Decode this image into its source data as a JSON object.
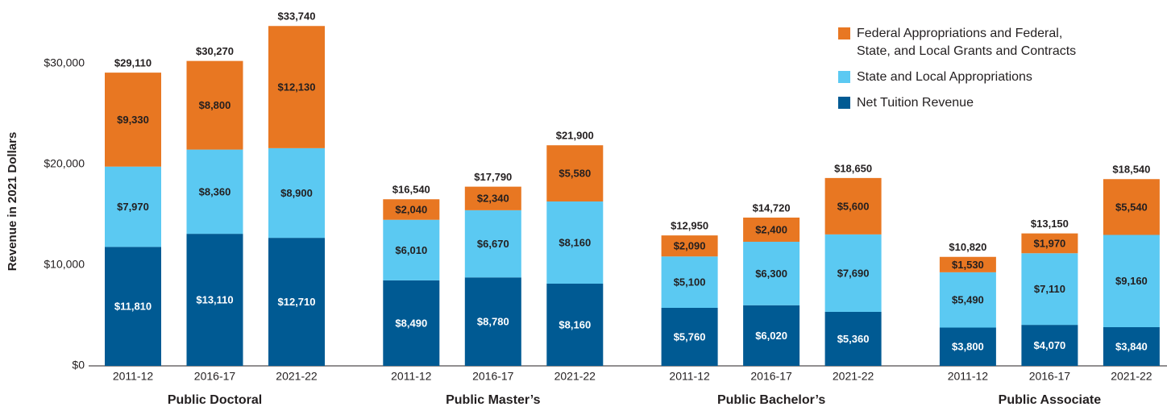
{
  "chart_data": {
    "type": "stacked-bar",
    "y_axis_label": "Revenue in 2021 Dollars",
    "categories": [
      "2011-12",
      "2016-17",
      "2021-22",
      "2011-12",
      "2016-17",
      "2021-22",
      "2011-12",
      "2016-17",
      "2021-22",
      "2011-12",
      "2016-17",
      "2021-22"
    ],
    "group_labels": [
      "Public Doctoral",
      "Public Master’s",
      "Public Bachelor’s",
      "Public Associate"
    ],
    "series": [
      {
        "name": "Net Tuition Revenue",
        "color": "#005a93",
        "values": [
          11810,
          13110,
          12710,
          8490,
          8780,
          8160,
          5760,
          6020,
          5360,
          3800,
          4070,
          3840
        ],
        "value_labels": [
          "$11,810",
          "$13,110",
          "$12,710",
          "$8,490",
          "$8,780",
          "$8,160",
          "$5,760",
          "$6,020",
          "$5,360",
          "$3,800",
          "$4,070",
          "$3,840"
        ]
      },
      {
        "name": "State and Local Appropriations",
        "color": "#5bc9f2",
        "values": [
          7970,
          8360,
          8900,
          6010,
          6670,
          8160,
          5100,
          6300,
          7690,
          5490,
          7110,
          9160
        ],
        "value_labels": [
          "$7,970",
          "$8,360",
          "$8,900",
          "$6,010",
          "$6,670",
          "$8,160",
          "$5,100",
          "$6,300",
          "$7,690",
          "$5,490",
          "$7,110",
          "$9,160"
        ]
      },
      {
        "name": "Federal Appropriations and Federal, State, and Local Grants and Contracts",
        "color": "#e87722",
        "values": [
          9330,
          8800,
          12130,
          2040,
          2340,
          5580,
          2090,
          2400,
          5600,
          1530,
          1970,
          5540
        ],
        "value_labels": [
          "$9,330",
          "$8,800",
          "$12,130",
          "$2,040",
          "$2,340",
          "$5,580",
          "$2,090",
          "$2,400",
          "$5,600",
          "$1,530",
          "$1,970",
          "$5,540"
        ]
      }
    ],
    "totals": [
      29110,
      30270,
      33740,
      16540,
      17790,
      21900,
      12950,
      14720,
      18650,
      10820,
      13150,
      18540
    ],
    "total_labels": [
      "$29,110",
      "$30,270",
      "$33,740",
      "$16,540",
      "$17,790",
      "$21,900",
      "$12,950",
      "$14,720",
      "$18,650",
      "$10,820",
      "$13,150",
      "$18,540"
    ],
    "ylim": [
      0,
      34000
    ],
    "yticks": [
      {
        "value": 0,
        "label": "$0"
      },
      {
        "value": 10000,
        "label": "$10,000"
      },
      {
        "value": 20000,
        "label": "$20,000"
      },
      {
        "value": 30000,
        "label": "$30,000"
      }
    ],
    "grid": false,
    "legend": "top-right"
  }
}
